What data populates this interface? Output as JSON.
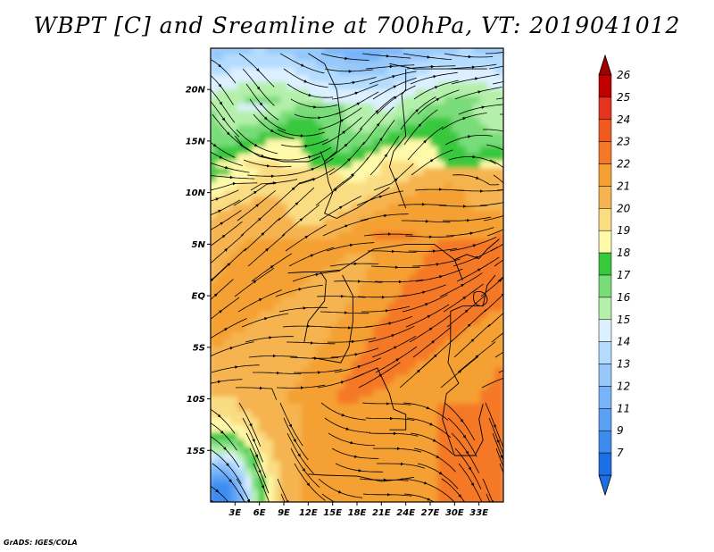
{
  "title": "WBPT [C] and Sreamline at 700hPa, VT: 2019041012",
  "credit": "GrADS: IGES/COLA",
  "map": {
    "lon_range": [
      0,
      36
    ],
    "lat_range": [
      -20,
      24
    ],
    "lon_ticks": [
      {
        "value": 3,
        "label": "3E"
      },
      {
        "value": 6,
        "label": "6E"
      },
      {
        "value": 9,
        "label": "9E"
      },
      {
        "value": 12,
        "label": "12E"
      },
      {
        "value": 15,
        "label": "15E"
      },
      {
        "value": 18,
        "label": "18E"
      },
      {
        "value": 21,
        "label": "21E"
      },
      {
        "value": 24,
        "label": "24E"
      },
      {
        "value": 27,
        "label": "27E"
      },
      {
        "value": 30,
        "label": "30E"
      },
      {
        "value": 33,
        "label": "33E"
      }
    ],
    "lat_ticks": [
      {
        "value": 20,
        "label": "20N"
      },
      {
        "value": 15,
        "label": "15N"
      },
      {
        "value": 10,
        "label": "10N"
      },
      {
        "value": 5,
        "label": "5N"
      },
      {
        "value": 0,
        "label": "EQ"
      },
      {
        "value": -5,
        "label": "5S"
      },
      {
        "value": -10,
        "label": "10S"
      },
      {
        "value": -15,
        "label": "15S"
      }
    ]
  },
  "colorbar": {
    "levels": [
      {
        "label": "7",
        "color": "#1e6ee6"
      },
      {
        "label": "9",
        "color": "#3c8cf0"
      },
      {
        "label": "11",
        "color": "#5aa0f5"
      },
      {
        "label": "12",
        "color": "#78b4fa"
      },
      {
        "label": "13",
        "color": "#96c8fa"
      },
      {
        "label": "14",
        "color": "#b4dcff"
      },
      {
        "label": "15",
        "color": "#dcf0ff"
      },
      {
        "label": "16",
        "color": "#b4f0aa"
      },
      {
        "label": "17",
        "color": "#78dc78"
      },
      {
        "label": "18",
        "color": "#37c83c"
      },
      {
        "label": "19",
        "color": "#fffaaa"
      },
      {
        "label": "20",
        "color": "#fadc82"
      },
      {
        "label": "21",
        "color": "#f5b450"
      },
      {
        "label": "22",
        "color": "#f5a032"
      },
      {
        "label": "23",
        "color": "#f57828"
      },
      {
        "label": "24",
        "color": "#f05a1e"
      },
      {
        "label": "25",
        "color": "#e6321e"
      },
      {
        "label": "26",
        "color": "#c00000"
      }
    ],
    "under_color": "#1e6ee6",
    "over_color": "#a00000"
  }
}
